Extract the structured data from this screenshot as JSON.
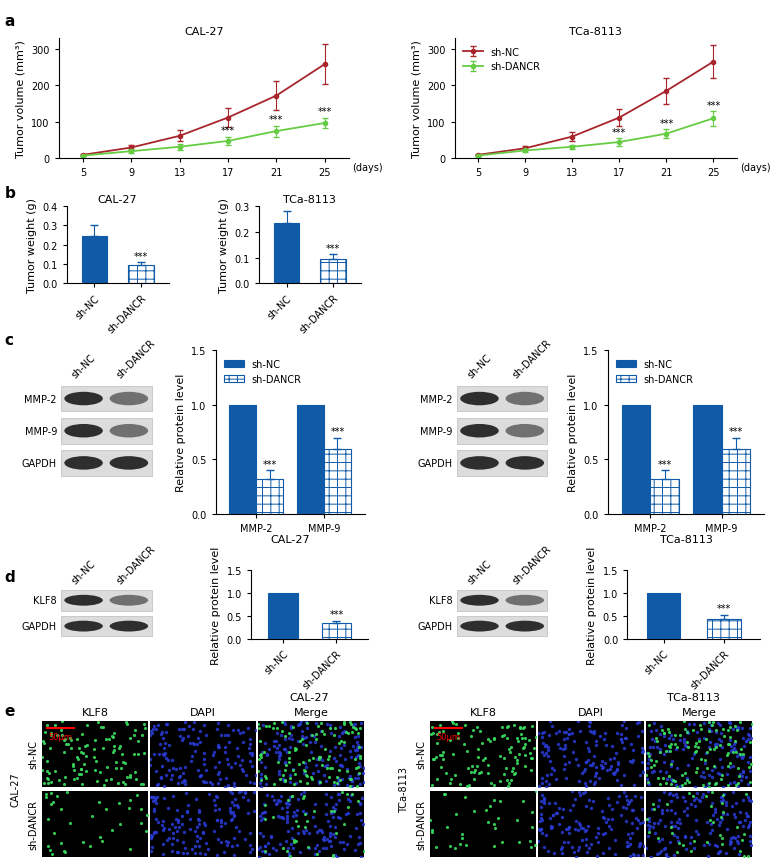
{
  "panel_labels": [
    "a",
    "b",
    "c",
    "d",
    "e"
  ],
  "chart_data": [
    {
      "type": "line",
      "title": "CAL-27",
      "y_label": "Tumor volume (mm³)",
      "x_label": "(days)",
      "x": [
        5,
        9,
        13,
        17,
        21,
        25
      ],
      "xlim": [
        3,
        27
      ],
      "xticks": [
        5,
        9,
        13,
        17,
        21,
        25
      ],
      "ylim": [
        0,
        330
      ],
      "yticks": [
        0,
        100,
        200,
        300
      ],
      "series": [
        {
          "name": "sh-NC",
          "color": "#a8262b",
          "marker": "circle",
          "values": [
            10,
            30,
            62,
            112,
            172,
            258
          ],
          "errors": [
            3,
            8,
            15,
            25,
            40,
            55
          ]
        },
        {
          "name": "sh-DANCR",
          "color": "#66cc44",
          "marker": "circle",
          "values": [
            8,
            20,
            32,
            48,
            75,
            97
          ],
          "errors": [
            2,
            5,
            8,
            12,
            15,
            15
          ]
        }
      ],
      "annotations": [
        {
          "x": 17,
          "text": "***"
        },
        {
          "x": 21,
          "text": "***"
        },
        {
          "x": 25,
          "text": "***"
        }
      ]
    },
    {
      "type": "line",
      "title": "TCa-8113",
      "y_label": "Tumor volume (mm³)",
      "x_label": "(days)",
      "x": [
        5,
        9,
        13,
        17,
        21,
        25
      ],
      "xlim": [
        3,
        27
      ],
      "xticks": [
        5,
        9,
        13,
        17,
        21,
        25
      ],
      "ylim": [
        0,
        330
      ],
      "yticks": [
        0,
        100,
        200,
        300
      ],
      "legend": "upper left",
      "series": [
        {
          "name": "sh-NC",
          "color": "#a8262b",
          "marker": "circle",
          "values": [
            10,
            28,
            60,
            112,
            185,
            265
          ],
          "errors": [
            3,
            6,
            12,
            22,
            35,
            45
          ]
        },
        {
          "name": "sh-DANCR",
          "color": "#66cc44",
          "marker": "circle",
          "values": [
            8,
            22,
            32,
            45,
            68,
            110
          ],
          "errors": [
            2,
            4,
            6,
            10,
            12,
            20
          ]
        }
      ],
      "annotations": [
        {
          "x": 17,
          "text": "***"
        },
        {
          "x": 21,
          "text": "***"
        },
        {
          "x": 25,
          "text": "***"
        }
      ]
    },
    {
      "type": "bar",
      "title": "CAL-27",
      "y_label": "Tumor weight (g)",
      "categories": [
        "sh-NC",
        "sh-DANCR"
      ],
      "values": [
        0.245,
        0.093
      ],
      "errors": [
        0.055,
        0.018
      ],
      "color": "#0f5ba8",
      "ylim": [
        0,
        0.4
      ],
      "yticks": [
        {
          "value": 0,
          "label": "0.0"
        },
        0.1,
        0.2,
        0.3,
        0.4
      ],
      "annotations": [
        {
          "category": "sh-DANCR",
          "text": "***"
        }
      ]
    },
    {
      "type": "bar",
      "title": "TCa-8113",
      "y_label": "Tumor weight (g)",
      "categories": [
        "sh-NC",
        "sh-DANCR"
      ],
      "values": [
        0.232,
        0.095
      ],
      "errors": [
        0.05,
        0.018
      ],
      "color": "#0f5ba8",
      "ylim": [
        0,
        0.3
      ],
      "yticks": [
        {
          "value": 0,
          "label": "0.0"
        },
        0.1,
        0.2,
        0.3
      ],
      "annotations": [
        {
          "category": "sh-DANCR",
          "text": "***"
        }
      ]
    },
    {
      "type": "bar",
      "x_label": "CAL-27",
      "y_label": "Relative protein level",
      "categories": [
        "MMP-2",
        "MMP-9"
      ],
      "legend": "upper left",
      "series": [
        {
          "name": "sh-NC",
          "color": "#0f5ba8",
          "values": [
            1,
            1
          ]
        },
        {
          "name": "sh-DANCR",
          "color": "#0f5ba8",
          "values": [
            0.32,
            0.6
          ],
          "errors": [
            0.08,
            0.1
          ]
        }
      ],
      "ylim": [
        0,
        1.5
      ],
      "yticks": [
        {
          "value": 0,
          "label": "0.0"
        },
        0.5,
        1.0,
        1.5
      ],
      "annotations": [
        {
          "series": "sh-DANCR",
          "category": "MMP-2",
          "text": "***"
        },
        {
          "series": "sh-DANCR",
          "category": "MMP-9",
          "text": "***"
        }
      ]
    },
    {
      "type": "bar",
      "x_label": "TCa-8113",
      "y_label": "Relative protein level",
      "categories": [
        "MMP-2",
        "MMP-9"
      ],
      "legend": "upper left",
      "series": [
        {
          "name": "sh-NC",
          "color": "#0f5ba8",
          "values": [
            1,
            1
          ]
        },
        {
          "name": "sh-DANCR",
          "color": "#0f5ba8",
          "values": [
            0.32,
            0.6
          ],
          "errors": [
            0.08,
            0.1
          ]
        }
      ],
      "ylim": [
        0,
        1.5
      ],
      "yticks": [
        {
          "value": 0,
          "label": "0.0"
        },
        0.5,
        1.0,
        1.5
      ],
      "annotations": [
        {
          "series": "sh-DANCR",
          "category": "MMP-2",
          "text": "***"
        },
        {
          "series": "sh-DANCR",
          "category": "MMP-9",
          "text": "***"
        }
      ]
    },
    {
      "type": "bar",
      "x_label": "CAL-27",
      "y_label": "Relative protein level",
      "categories": [
        "sh-NC",
        "sh-DANCR"
      ],
      "values": [
        1,
        0.35
      ],
      "errors": [
        null,
        0.05
      ],
      "color": "#0f5ba8",
      "ylim": [
        0,
        1.5
      ],
      "yticks": [
        {
          "value": 0,
          "label": "0.0"
        },
        0.5,
        1.0,
        1.5
      ],
      "annotations": [
        {
          "category": "sh-DANCR",
          "text": "***"
        }
      ]
    },
    {
      "type": "bar",
      "x_label": "TCa-8113",
      "y_label": "Relative protein level",
      "categories": [
        "sh-NC",
        "sh-DANCR"
      ],
      "values": [
        1,
        0.43
      ],
      "errors": [
        null,
        0.1
      ],
      "color": "#0f5ba8",
      "ylim": [
        0,
        1.5
      ],
      "yticks": [
        {
          "value": 0,
          "label": "0.0"
        },
        0.5,
        1.0,
        1.5
      ],
      "annotations": [
        {
          "category": "sh-DANCR",
          "text": "***"
        }
      ]
    }
  ],
  "western_blots": [
    {
      "lanes": [
        "sh-NC",
        "sh-DANCR"
      ],
      "bands": [
        "MMP-2",
        "MMP-9",
        "GAPDH"
      ]
    },
    {
      "lanes": [
        "sh-NC",
        "sh-DANCR"
      ],
      "bands": [
        "MMP-2",
        "MMP-9",
        "GAPDH"
      ]
    },
    {
      "lanes": [
        "sh-NC",
        "sh-DANCR"
      ],
      "bands": [
        "KLF8",
        "GAPDH"
      ]
    },
    {
      "lanes": [
        "sh-NC",
        "sh-DANCR"
      ],
      "bands": [
        "KLF8",
        "GAPDH"
      ]
    }
  ],
  "immunofluorescence": {
    "columns": [
      "KLF8",
      "DAPI",
      "Merge"
    ],
    "rows": [
      "sh-NC",
      "sh-DANCR"
    ],
    "cell_lines": [
      "CAL-27",
      "TCa-8113"
    ],
    "scale_bar": "50μm"
  }
}
